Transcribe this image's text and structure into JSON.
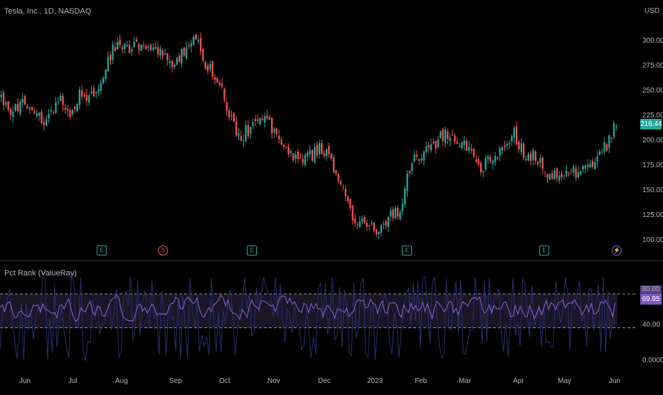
{
  "symbol_legend": "Tesla, Inc., 1D, NASDAQ",
  "currency": "USD",
  "indicator_legend": "Pct Rank (ValueRay)",
  "price_axis_ticks": [
    "300.00",
    "275.00",
    "250.00",
    "225.00",
    "200.00",
    "175.00",
    "150.00",
    "125.00",
    "100.00"
  ],
  "last_price": "216.44",
  "indicator_axis_ticks": [
    "40.00",
    "0.0000"
  ],
  "indicator_badges": {
    "upper": "80.00",
    "value": "69.95"
  },
  "time_axis_labels": [
    "Jun",
    "Jul",
    "Aug",
    "Sep",
    "Oct",
    "Nov",
    "Dec",
    "2023",
    "Feb",
    "Mar",
    "Apr",
    "May",
    "Jun"
  ],
  "events": [
    {
      "type": "earnings",
      "glyph": "E"
    },
    {
      "type": "dividend",
      "glyph": "S"
    },
    {
      "type": "earnings",
      "glyph": "E"
    },
    {
      "type": "earnings",
      "glyph": "E"
    },
    {
      "type": "earnings",
      "glyph": "E"
    },
    {
      "type": "split",
      "glyph": "⚡"
    }
  ],
  "colors": {
    "up": "#26a69a",
    "down": "#ef5350",
    "indicator_line": "#7e57c2",
    "indicator_band": "#1a1626",
    "last_price_badge": "#26a69a",
    "indicator_badge": "#7e57c2"
  },
  "chart_data": [
    {
      "type": "candlestick",
      "title": "Tesla, Inc., 1D, NASDAQ",
      "x_range": [
        "2022-05-20",
        "2023-06-02"
      ],
      "ylim": [
        95,
        320
      ],
      "y_label": "USD",
      "anchor_closes": [
        [
          "2022-05-20",
          243
        ],
        [
          "2022-05-27",
          230
        ],
        [
          "2022-06-03",
          243
        ],
        [
          "2022-06-10",
          232
        ],
        [
          "2022-06-17",
          216
        ],
        [
          "2022-06-24",
          245
        ],
        [
          "2022-07-01",
          230
        ],
        [
          "2022-07-08",
          248
        ],
        [
          "2022-07-15",
          243
        ],
        [
          "2022-07-22",
          270
        ],
        [
          "2022-07-29",
          296
        ],
        [
          "2022-08-05",
          290
        ],
        [
          "2022-08-12",
          299
        ],
        [
          "2022-08-19",
          296
        ],
        [
          "2022-08-26",
          288
        ],
        [
          "2022-09-02",
          272
        ],
        [
          "2022-09-09",
          290
        ],
        [
          "2022-09-16",
          303
        ],
        [
          "2022-09-23",
          275
        ],
        [
          "2022-09-30",
          265
        ],
        [
          "2022-10-07",
          225
        ],
        [
          "2022-10-14",
          205
        ],
        [
          "2022-10-21",
          214
        ],
        [
          "2022-10-28",
          228
        ],
        [
          "2022-11-04",
          207
        ],
        [
          "2022-11-11",
          195
        ],
        [
          "2022-11-18",
          180
        ],
        [
          "2022-11-25",
          183
        ],
        [
          "2022-12-02",
          194
        ],
        [
          "2022-12-09",
          179
        ],
        [
          "2022-12-16",
          150
        ],
        [
          "2022-12-23",
          123
        ],
        [
          "2022-12-30",
          112
        ],
        [
          "2023-01-06",
          113
        ],
        [
          "2023-01-13",
          122
        ],
        [
          "2023-01-20",
          133
        ],
        [
          "2023-01-27",
          177
        ],
        [
          "2023-02-03",
          189
        ],
        [
          "2023-02-10",
          196
        ],
        [
          "2023-02-17",
          208
        ],
        [
          "2023-02-24",
          196
        ],
        [
          "2023-03-03",
          197
        ],
        [
          "2023-03-10",
          173
        ],
        [
          "2023-03-17",
          180
        ],
        [
          "2023-03-24",
          191
        ],
        [
          "2023-03-31",
          207
        ],
        [
          "2023-04-07",
          185
        ],
        [
          "2023-04-14",
          185
        ],
        [
          "2023-04-21",
          162
        ],
        [
          "2023-04-28",
          164
        ],
        [
          "2023-05-05",
          170
        ],
        [
          "2023-05-12",
          167
        ],
        [
          "2023-05-19",
          180
        ],
        [
          "2023-05-26",
          193
        ],
        [
          "2023-06-02",
          216.44
        ]
      ]
    },
    {
      "type": "line",
      "title": "Pct Rank (ValueRay)",
      "ylim": [
        0,
        100
      ],
      "reference_lines": [
        80,
        40
      ],
      "last_value": 69.95
    }
  ]
}
